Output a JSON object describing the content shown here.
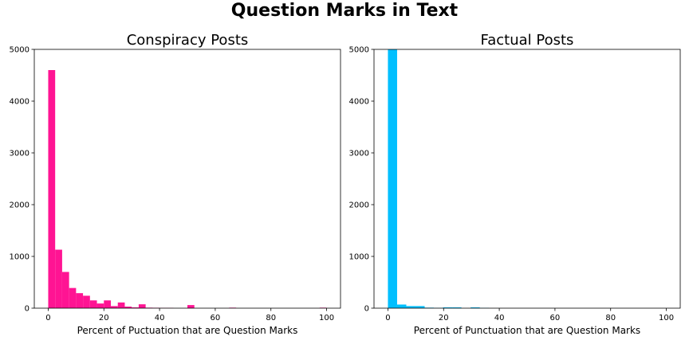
{
  "figure": {
    "title": "Question Marks in Text"
  },
  "chart_data": [
    {
      "type": "bar",
      "title": "Conspiracy Posts",
      "xlabel": "Percent of Puctuation that are Question Marks",
      "ylabel": "",
      "xlim": [
        -5,
        105
      ],
      "ylim": [
        0,
        5000
      ],
      "xticks": [
        0,
        20,
        40,
        60,
        80,
        100
      ],
      "yticks": [
        0,
        1000,
        2000,
        3000,
        4000,
        5000
      ],
      "bin_width": 2.5,
      "color": "#ff1493",
      "bins": [
        {
          "x": 0.0,
          "count": 4600
        },
        {
          "x": 2.5,
          "count": 1130
        },
        {
          "x": 5.0,
          "count": 700
        },
        {
          "x": 7.5,
          "count": 390
        },
        {
          "x": 10.0,
          "count": 290
        },
        {
          "x": 12.5,
          "count": 240
        },
        {
          "x": 15.0,
          "count": 150
        },
        {
          "x": 17.5,
          "count": 90
        },
        {
          "x": 20.0,
          "count": 150
        },
        {
          "x": 22.5,
          "count": 40
        },
        {
          "x": 25.0,
          "count": 110
        },
        {
          "x": 27.5,
          "count": 30
        },
        {
          "x": 30.0,
          "count": 15
        },
        {
          "x": 32.5,
          "count": 75
        },
        {
          "x": 35.0,
          "count": 10
        },
        {
          "x": 37.5,
          "count": 8
        },
        {
          "x": 40.0,
          "count": 5
        },
        {
          "x": 42.5,
          "count": 5
        },
        {
          "x": 50.0,
          "count": 60
        },
        {
          "x": 65.0,
          "count": 10
        },
        {
          "x": 97.5,
          "count": 10
        }
      ]
    },
    {
      "type": "bar",
      "title": "Factual Posts",
      "xlabel": "Percent of Punctuation that are Question Marks",
      "ylabel": "",
      "xlim": [
        -5,
        105
      ],
      "ylim": [
        0,
        5000
      ],
      "xticks": [
        0,
        20,
        40,
        60,
        80,
        100
      ],
      "yticks": [
        0,
        1000,
        2000,
        3000,
        4000,
        5000
      ],
      "bin_width": 3.3,
      "color": "#00bfff",
      "bins": [
        {
          "x": 0.0,
          "count": 5000
        },
        {
          "x": 3.3,
          "count": 70
        },
        {
          "x": 6.6,
          "count": 40
        },
        {
          "x": 9.9,
          "count": 40
        },
        {
          "x": 13.2,
          "count": 10
        },
        {
          "x": 16.5,
          "count": 5
        },
        {
          "x": 19.8,
          "count": 15
        },
        {
          "x": 23.1,
          "count": 15
        },
        {
          "x": 29.7,
          "count": 15
        },
        {
          "x": 33.0,
          "count": 5
        }
      ]
    }
  ]
}
